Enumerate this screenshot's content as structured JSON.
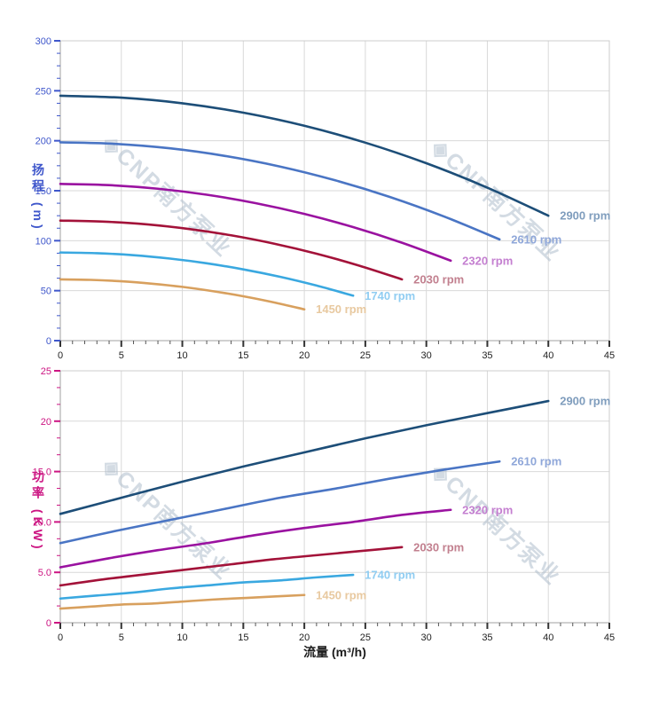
{
  "watermark": {
    "logo_glyph": "◈",
    "text": "CNP南方泵业",
    "color": "rgba(175,189,204,0.55)"
  },
  "grid_color": "#d9d9d9",
  "chart_data": [
    {
      "type": "line",
      "id": "head-curves",
      "y_title": "扬程 (m)",
      "axis_color": "#3f57cb",
      "x_axis": {
        "min": 0,
        "max": 45,
        "major": 5,
        "minor": 1,
        "tick_labels": [
          "0",
          "5",
          "10",
          "15",
          "20",
          "25",
          "30",
          "35",
          "40",
          "45"
        ]
      },
      "y_axis": {
        "min": 0,
        "max": 300,
        "major": 50,
        "minor": 12.5,
        "tick_labels": [
          "0",
          "50",
          "100",
          "150",
          "200",
          "250",
          "300"
        ]
      },
      "series": [
        {
          "name": "2900 rpm",
          "rpm": 2900,
          "color": "#1d4e78",
          "label_color": "#7f9dbd",
          "points": [
            [
              0,
              245
            ],
            [
              5,
              243.1
            ],
            [
              10,
              237.5
            ],
            [
              15,
              228.1
            ],
            [
              20,
              215
            ],
            [
              25,
              198.1
            ],
            [
              30,
              177.5
            ],
            [
              35,
              153.1
            ],
            [
              40,
              125
            ]
          ]
        },
        {
          "name": "2610 rpm",
          "rpm": 2610,
          "color": "#4a75c4",
          "label_color": "#8fa7d9",
          "points": [
            [
              0,
              198.4
            ],
            [
              4.5,
              196.9
            ],
            [
              9,
              192.4
            ],
            [
              13.5,
              184.8
            ],
            [
              18,
              174.2
            ],
            [
              22.5,
              160.5
            ],
            [
              27,
              143.8
            ],
            [
              31.5,
              124
            ],
            [
              36,
              101.3
            ]
          ]
        },
        {
          "name": "2320 rpm",
          "rpm": 2320,
          "color": "#9a12a0",
          "label_color": "#c47fd0",
          "points": [
            [
              0,
              156.8
            ],
            [
              4,
              155.6
            ],
            [
              8,
              152
            ],
            [
              12,
              146
            ],
            [
              16,
              137.6
            ],
            [
              20,
              126.8
            ],
            [
              24,
              113.6
            ],
            [
              28,
              98
            ],
            [
              32,
              80
            ]
          ]
        },
        {
          "name": "2030 rpm",
          "rpm": 2030,
          "color": "#a31239",
          "label_color": "#c2808f",
          "points": [
            [
              0,
              120.1
            ],
            [
              3.5,
              119.1
            ],
            [
              7,
              116.4
            ],
            [
              10.5,
              111.8
            ],
            [
              14,
              105.4
            ],
            [
              17.5,
              97.1
            ],
            [
              21,
              87
            ],
            [
              24.5,
              75
            ],
            [
              28,
              61.3
            ]
          ]
        },
        {
          "name": "1740 rpm",
          "rpm": 1740,
          "color": "#3aa8e0",
          "label_color": "#90cdf2",
          "points": [
            [
              0,
              88.2
            ],
            [
              3,
              87.5
            ],
            [
              6,
              85.5
            ],
            [
              9,
              82.1
            ],
            [
              12,
              77.4
            ],
            [
              15,
              71.3
            ],
            [
              18,
              63.9
            ],
            [
              21,
              55.1
            ],
            [
              24,
              45
            ]
          ]
        },
        {
          "name": "1450 rpm",
          "rpm": 1450,
          "color": "#d8a05e",
          "label_color": "#e8c9a0",
          "points": [
            [
              0,
              61.3
            ],
            [
              2.5,
              60.8
            ],
            [
              5,
              59.4
            ],
            [
              7.5,
              57
            ],
            [
              10,
              53.8
            ],
            [
              12.5,
              49.5
            ],
            [
              15,
              44.4
            ],
            [
              17.5,
              38.3
            ],
            [
              20,
              31.3
            ]
          ]
        }
      ]
    },
    {
      "type": "line",
      "id": "power-curves",
      "y_title": "功率 (KW)",
      "x_title": "流量 (m³/h)",
      "axis_color": "#cc1582",
      "x_axis": {
        "min": 0,
        "max": 45,
        "major": 5,
        "minor": 1,
        "tick_labels": [
          "0",
          "5",
          "10",
          "15",
          "20",
          "25",
          "30",
          "35",
          "40",
          "45"
        ]
      },
      "y_axis": {
        "min": 0,
        "max": 25,
        "major": 5,
        "minor": 1.6667,
        "tick_labels": [
          "0",
          "5.0",
          "10.0",
          "15.0",
          "20",
          "25"
        ]
      },
      "series": [
        {
          "name": "2900 rpm",
          "rpm": 2900,
          "color": "#1d4e78",
          "label_color": "#7f9dbd",
          "points": [
            [
              0,
              10.8
            ],
            [
              5,
              12.4
            ],
            [
              10,
              14
            ],
            [
              15,
              15.5
            ],
            [
              20,
              16.9
            ],
            [
              25,
              18.3
            ],
            [
              30,
              19.6
            ],
            [
              35,
              20.8
            ],
            [
              40,
              22
            ]
          ]
        },
        {
          "name": "2610 rpm",
          "rpm": 2610,
          "color": "#4a75c4",
          "label_color": "#8fa7d9",
          "points": [
            [
              0,
              7.9
            ],
            [
              4.5,
              9.1
            ],
            [
              9,
              10.2
            ],
            [
              13.5,
              11.3
            ],
            [
              18,
              12.4
            ],
            [
              22.5,
              13.3
            ],
            [
              27,
              14.3
            ],
            [
              31.5,
              15.2
            ],
            [
              36,
              16
            ]
          ]
        },
        {
          "name": "2320 rpm",
          "rpm": 2320,
          "color": "#9a12a0",
          "label_color": "#c47fd0",
          "points": [
            [
              0,
              5.5
            ],
            [
              4,
              6.4
            ],
            [
              8,
              7.2
            ],
            [
              12,
              7.9
            ],
            [
              16,
              8.7
            ],
            [
              20,
              9.4
            ],
            [
              24,
              10
            ],
            [
              28,
              10.7
            ],
            [
              32,
              11.2
            ]
          ]
        },
        {
          "name": "2030 rpm",
          "rpm": 2030,
          "color": "#a31239",
          "label_color": "#c2808f",
          "points": [
            [
              0,
              3.7
            ],
            [
              3.5,
              4.3
            ],
            [
              7,
              4.8
            ],
            [
              10.5,
              5.3
            ],
            [
              14,
              5.8
            ],
            [
              17.5,
              6.3
            ],
            [
              21,
              6.7
            ],
            [
              24.5,
              7.1
            ],
            [
              28,
              7.5
            ]
          ]
        },
        {
          "name": "1740 rpm",
          "rpm": 1740,
          "color": "#3aa8e0",
          "label_color": "#90cdf2",
          "points": [
            [
              0,
              2.4
            ],
            [
              3,
              2.7
            ],
            [
              6,
              3
            ],
            [
              9,
              3.4
            ],
            [
              12,
              3.7
            ],
            [
              15,
              4
            ],
            [
              18,
              4.2
            ],
            [
              21,
              4.5
            ],
            [
              24,
              4.75
            ]
          ]
        },
        {
          "name": "1450 rpm",
          "rpm": 1450,
          "color": "#d8a05e",
          "label_color": "#e8c9a0",
          "points": [
            [
              0,
              1.4
            ],
            [
              2.5,
              1.6
            ],
            [
              5,
              1.8
            ],
            [
              7.5,
              1.9
            ],
            [
              10,
              2.1
            ],
            [
              12.5,
              2.3
            ],
            [
              15,
              2.45
            ],
            [
              17.5,
              2.6
            ],
            [
              20,
              2.75
            ]
          ]
        }
      ]
    }
  ]
}
